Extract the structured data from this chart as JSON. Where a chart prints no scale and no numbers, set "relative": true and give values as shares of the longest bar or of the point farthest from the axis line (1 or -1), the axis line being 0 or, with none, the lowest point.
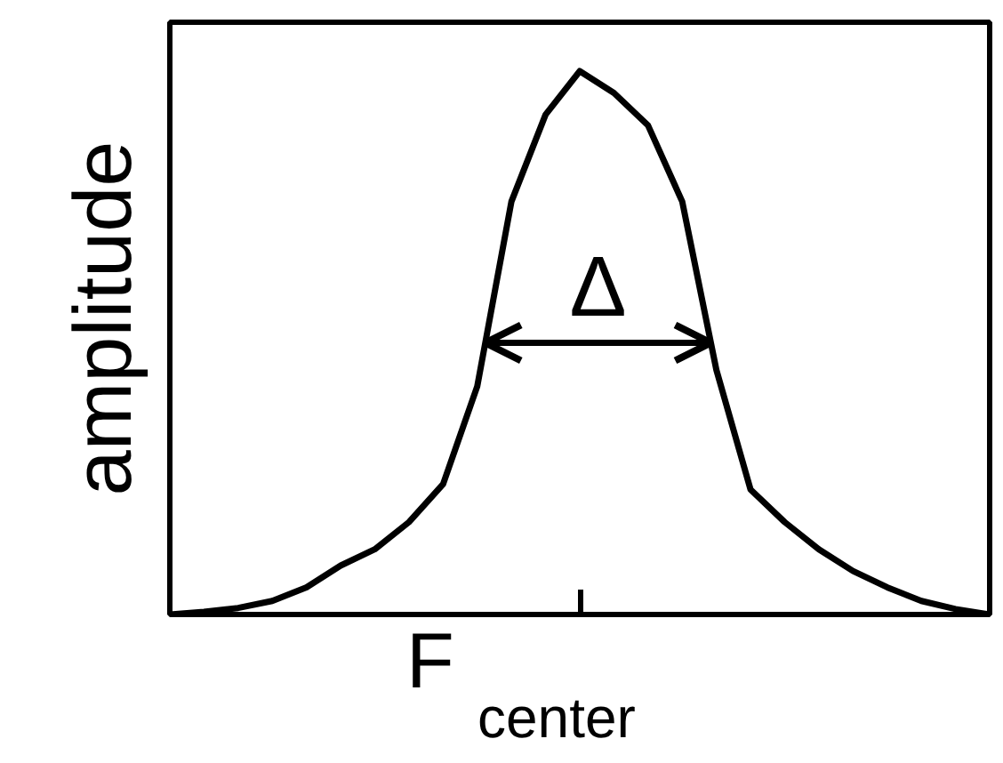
{
  "chart_data": {
    "type": "line",
    "relative": true,
    "ylabel": "amplitude",
    "xlabel": "F$_{center}$",
    "categories": [
      null,
      null,
      null,
      null,
      null,
      null,
      null,
      null,
      null,
      null,
      null,
      null,
      null,
      null,
      null,
      null,
      null,
      null,
      null,
      null,
      null,
      null,
      null,
      null,
      null
    ],
    "series": [
      {
        "color": "#000000",
        "values": [
          0,
          0.005,
          0.012,
          0.025,
          0.05,
          0.09,
          0.12,
          0.17,
          0.24,
          0.42,
          0.76,
          0.92,
          1.0,
          0.96,
          0.9,
          0.76,
          0.45,
          0.23,
          0.17,
          0.12,
          0.08,
          0.05,
          0.025,
          0.01,
          0
        ]
      }
    ],
    "annotations": [
      "Δ"
    ],
    "grid": false,
    "marker": "none",
    "line_style": "solid"
  }
}
